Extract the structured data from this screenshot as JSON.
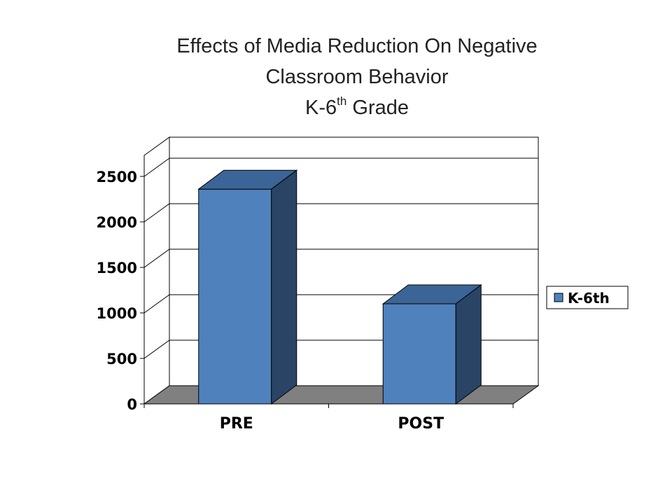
{
  "chart_data": {
    "type": "bar",
    "title_lines": [
      "Effects of Media Reduction On Negative",
      "Classroom Behavior"
    ],
    "title_grade_prefix": "K-6",
    "title_grade_sup": "th",
    "title_grade_suffix": " Grade",
    "categories": [
      "PRE",
      "POST"
    ],
    "series": [
      {
        "name": "K-6th",
        "values": [
          2360,
          1100
        ],
        "color": "#4f81bd"
      }
    ],
    "ylim": [
      0,
      2500
    ],
    "yticks": [
      0,
      500,
      1000,
      1500,
      2000,
      2500
    ],
    "grid": true,
    "legend": "right",
    "style": "3d-column",
    "colors": {
      "bar_front": "#4f81bd",
      "bar_top": "#3b6596",
      "bar_side": "#2a4466",
      "floor": "#808080"
    }
  }
}
